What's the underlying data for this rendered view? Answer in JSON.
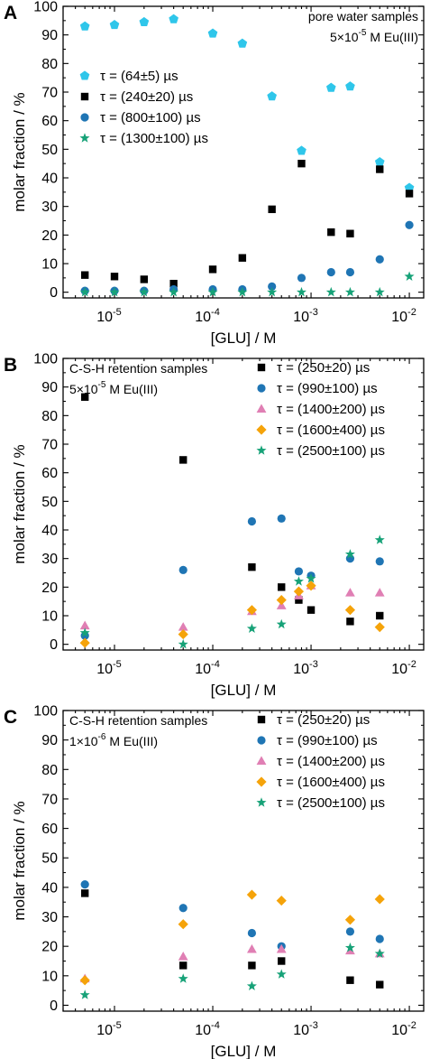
{
  "chart_data": [
    {
      "type": "scatter",
      "panel_label": "A",
      "xlabel": "[GLU] / M",
      "ylabel": "molar fraction / %",
      "xscale": "log",
      "xlim": [
        3e-06,
        0.014
      ],
      "ylim": [
        -2,
        100
      ],
      "xticks": [
        {
          "value": 1e-05,
          "mant": "10",
          "exp": "-5"
        },
        {
          "value": 0.0001,
          "mant": "10",
          "exp": "-4"
        },
        {
          "value": 0.001,
          "mant": "10",
          "exp": "-3"
        },
        {
          "value": 0.01,
          "mant": "10",
          "exp": "-2"
        }
      ],
      "yticks": [
        "0",
        "10",
        "20",
        "30",
        "40",
        "50",
        "60",
        "70",
        "80",
        "90",
        "100"
      ],
      "annotation": [
        {
          "text": "pore water samples"
        },
        {
          "text": "5×10",
          "sup": "-5",
          "after": " M Eu(III)"
        }
      ],
      "annotation_align": "right",
      "legend_position": "upper-left",
      "x": [
        5e-06,
        1e-05,
        2e-05,
        4e-05,
        0.0001,
        0.0002,
        0.0004,
        0.0008,
        0.0016,
        0.0025,
        0.005,
        0.01
      ],
      "series": [
        {
          "name": "τ = (64±5) µs",
          "marker": "pentagon",
          "color": "#2fc6ea",
          "values": [
            93,
            93.5,
            94.5,
            95.5,
            90.5,
            87,
            68.5,
            49.5,
            71.5,
            72,
            45.5,
            36.5
          ]
        },
        {
          "name": "τ = (240±20) µs",
          "marker": "square",
          "color": "#000000",
          "values": [
            6,
            5.5,
            4.5,
            3,
            8,
            12,
            29,
            45,
            21,
            20.5,
            43,
            34.5
          ]
        },
        {
          "name": "τ = (800±100) µs",
          "marker": "circle",
          "color": "#1f75b4",
          "values": [
            0.5,
            0.5,
            0.5,
            1,
            1,
            1,
            2,
            5,
            7,
            7,
            11.5,
            23.5
          ]
        },
        {
          "name": "τ = (1300±100) µs",
          "marker": "star",
          "color": "#17a278",
          "values": [
            0,
            0,
            0,
            0,
            0,
            0,
            0,
            0,
            0,
            0,
            0,
            5.5
          ]
        }
      ]
    },
    {
      "type": "scatter",
      "panel_label": "B",
      "xlabel": "[GLU] / M",
      "ylabel": "molar fraction / %",
      "xscale": "log",
      "xlim": [
        3e-06,
        0.014
      ],
      "ylim": [
        -2,
        100
      ],
      "xticks": [
        {
          "value": 1e-05,
          "mant": "10",
          "exp": "-5"
        },
        {
          "value": 0.0001,
          "mant": "10",
          "exp": "-4"
        },
        {
          "value": 0.001,
          "mant": "10",
          "exp": "-3"
        },
        {
          "value": 0.01,
          "mant": "10",
          "exp": "-2"
        }
      ],
      "yticks": [
        "0",
        "10",
        "20",
        "30",
        "40",
        "50",
        "60",
        "70",
        "80",
        "90",
        "100"
      ],
      "annotation": [
        {
          "text": "C-S-H retention samples"
        },
        {
          "text": "5×10",
          "sup": "-5",
          "after": " M Eu(III)"
        }
      ],
      "annotation_align": "left",
      "legend_position": "upper-right",
      "x": [
        5e-06,
        5e-05,
        0.00025,
        0.0005,
        0.00075,
        0.001,
        0.0025,
        0.005
      ],
      "series": [
        {
          "name": "τ = (250±20) µs",
          "marker": "square",
          "color": "#000000",
          "values": [
            86.5,
            64.5,
            27,
            20,
            15.5,
            12,
            8,
            10
          ]
        },
        {
          "name": "τ = (990±100) µs",
          "marker": "circle",
          "color": "#1f75b4",
          "values": [
            3,
            26,
            43,
            44,
            25.5,
            24,
            30,
            29
          ]
        },
        {
          "name": "τ = (1400±200) µs",
          "marker": "triangle",
          "color": "#e07fb4",
          "values": [
            6.5,
            6,
            11.5,
            13.5,
            17,
            20.5,
            18,
            18
          ]
        },
        {
          "name": "τ = (1600±400) µs",
          "marker": "diamond",
          "color": "#f5a30a",
          "values": [
            0.5,
            3.5,
            12,
            15.5,
            18.5,
            20.5,
            12,
            6
          ]
        },
        {
          "name": "τ = (2500±100) µs",
          "marker": "star",
          "color": "#17a278",
          "values": [
            4,
            0,
            5.5,
            7,
            22,
            23,
            31.5,
            36.5
          ]
        }
      ]
    },
    {
      "type": "scatter",
      "panel_label": "C",
      "xlabel": "[GLU] / M",
      "ylabel": "molar fraction / %",
      "xscale": "log",
      "xlim": [
        3e-06,
        0.014
      ],
      "ylim": [
        -2,
        100
      ],
      "xticks": [
        {
          "value": 1e-05,
          "mant": "10",
          "exp": "-5"
        },
        {
          "value": 0.0001,
          "mant": "10",
          "exp": "-4"
        },
        {
          "value": 0.001,
          "mant": "10",
          "exp": "-3"
        },
        {
          "value": 0.01,
          "mant": "10",
          "exp": "-2"
        }
      ],
      "yticks": [
        "0",
        "10",
        "20",
        "30",
        "40",
        "50",
        "60",
        "70",
        "80",
        "90",
        "100"
      ],
      "annotation": [
        {
          "text": "C-S-H retention samples"
        },
        {
          "text": "1×10",
          "sup": "-6",
          "after": " M Eu(III)"
        }
      ],
      "annotation_align": "left",
      "legend_position": "upper-right",
      "x": [
        5e-06,
        5e-05,
        0.00025,
        0.0005,
        0.0025,
        0.005
      ],
      "series": [
        {
          "name": "τ = (250±20) µs",
          "marker": "square",
          "color": "#000000",
          "values": [
            38,
            13.5,
            13.5,
            15,
            8.5,
            7
          ]
        },
        {
          "name": "τ = (990±100) µs",
          "marker": "circle",
          "color": "#1f75b4",
          "values": [
            41,
            33,
            24.5,
            20,
            25,
            22.5
          ]
        },
        {
          "name": "τ = (1400±200) µs",
          "marker": "triangle",
          "color": "#e07fb4",
          "values": [
            9,
            16.5,
            19,
            19,
            18.5,
            17.5
          ]
        },
        {
          "name": "τ = (1600±400) µs",
          "marker": "diamond",
          "color": "#f5a30a",
          "values": [
            8.5,
            27.5,
            37.5,
            35.5,
            29,
            36
          ]
        },
        {
          "name": "τ = (2500±100) µs",
          "marker": "star",
          "color": "#17a278",
          "values": [
            3.5,
            9,
            6.5,
            10.5,
            19.5,
            17.5
          ]
        }
      ]
    }
  ]
}
